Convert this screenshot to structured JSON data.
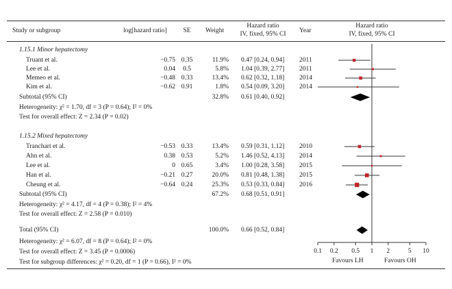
{
  "headers": {
    "study": "Study or subgroup",
    "loghr": "log[hazard ratio]",
    "se": "SE",
    "weight": "Weight",
    "hr_line1": "Hazard ratio",
    "hr_line2": "IV, fixed, 95% CI",
    "year": "Year",
    "plot_line1": "Hazard ratio",
    "plot_line2": "IV, fixed, 95% CI"
  },
  "groups": [
    {
      "title": "1.15.1 Minor hepatectomy",
      "rows": [
        {
          "study": "Truant et al.",
          "loghr": "−0.75",
          "se": "0.35",
          "weight": "11.9%",
          "ci": "0.47 [0.24, 0.94]",
          "year": "2011"
        },
        {
          "study": "Lee et al.",
          "loghr": "0.04",
          "se": "0.5",
          "weight": "5.8%",
          "ci": "1.04 [0.39, 2.77]",
          "year": "2011"
        },
        {
          "study": "Memeo et al.",
          "loghr": "−0.48",
          "se": "0.33",
          "weight": "13.4%",
          "ci": "0.62 [0.32, 1.18]",
          "year": "2014"
        },
        {
          "study": "Kim et al.",
          "loghr": "−0.62",
          "se": "0.91",
          "weight": "1.8%",
          "ci": "0.54 [0.09, 3.20]",
          "year": "2014"
        }
      ],
      "subtotal": {
        "label": "Subtotal (95% CI)",
        "weight": "32.8%",
        "ci": "0.61 [0.40, 0.92]"
      },
      "heterogeneity": "Heterogeneity: χ² = 1.70, df = 3 (P = 0.64); I² = 0%",
      "overall": "Test for overall effect: Z = 2.34 (P = 0.02)"
    },
    {
      "title": "1.15.2 Mixed hepatectomy",
      "rows": [
        {
          "study": "Tranchart et al.",
          "loghr": "−0.53",
          "se": "0.33",
          "weight": "13.4%",
          "ci": "0.59 [0.31, 1.12]",
          "year": "2010"
        },
        {
          "study": "Ahn et al.",
          "loghr": "0.38",
          "se": "0.53",
          "weight": "5.2%",
          "ci": "1.46 [0.52, 4.13]",
          "year": "2014"
        },
        {
          "study": "Lee et al.",
          "loghr": "0",
          "se": "0.65",
          "weight": "3.4%",
          "ci": "1.00 [0.28, 3.58]",
          "year": "2015"
        },
        {
          "study": "Han et al.",
          "loghr": "−0.21",
          "se": "0.27",
          "weight": "20.0%",
          "ci": "0.81 [0.48, 1.38]",
          "year": "2015"
        },
        {
          "study": "Cheung et al.",
          "loghr": "−0.64",
          "se": "0.24",
          "weight": "25.3%",
          "ci": "0.53 [0.33, 0.84]",
          "year": "2016"
        }
      ],
      "subtotal": {
        "label": "Subtotal (95% CI)",
        "weight": "67.2%",
        "ci": "0.68 [0.51, 0.91]"
      },
      "heterogeneity": "Heterogeneity: χ² = 4.17, df = 4 (P = 0.38); I² = 4%",
      "overall": "Test for overall effect: Z = 2.58 (P = 0.010)"
    }
  ],
  "total": {
    "label": "Total (95% CI)",
    "weight": "100.0%",
    "ci": "0.66 [0.52, 0.84]"
  },
  "footer": [
    "Heterogeneity: χ² = 6.07, df = 8 (P = 0.64); I² = 0%",
    "Test for overall effect: Z = 3.45 (P = 0.0006)",
    "Test for subgroup differences: χ² = 0.20, df = 1 (P = 0.66), I² = 0%"
  ],
  "favours": {
    "left": "Favours LH",
    "right": "Favours OH"
  },
  "colors": {
    "square": "#c0262a",
    "diamond": "#000000",
    "line": "#333333"
  },
  "chart_data": {
    "type": "forest",
    "xscale": "log",
    "xlim": [
      0.1,
      10
    ],
    "xticks": [
      "0.1",
      "0.2",
      "0.5",
      "1",
      "2",
      "5",
      "10"
    ],
    "reference_line": 1,
    "studies": [
      {
        "hr": 0.47,
        "lo": 0.24,
        "hi": 0.94,
        "weight": 11.9
      },
      {
        "hr": 1.04,
        "lo": 0.39,
        "hi": 2.77,
        "weight": 5.8
      },
      {
        "hr": 0.62,
        "lo": 0.32,
        "hi": 1.18,
        "weight": 13.4
      },
      {
        "hr": 0.54,
        "lo": 0.09,
        "hi": 3.2,
        "weight": 1.8
      },
      {
        "hr": 0.59,
        "lo": 0.31,
        "hi": 1.12,
        "weight": 13.4
      },
      {
        "hr": 1.46,
        "lo": 0.52,
        "hi": 4.13,
        "weight": 5.2
      },
      {
        "hr": 1.0,
        "lo": 0.28,
        "hi": 3.58,
        "weight": 3.4
      },
      {
        "hr": 0.81,
        "lo": 0.48,
        "hi": 1.38,
        "weight": 20.0
      },
      {
        "hr": 0.53,
        "lo": 0.33,
        "hi": 0.84,
        "weight": 25.3
      }
    ],
    "diamonds": [
      {
        "hr": 0.61,
        "lo": 0.4,
        "hi": 0.92
      },
      {
        "hr": 0.68,
        "lo": 0.51,
        "hi": 0.91
      },
      {
        "hr": 0.66,
        "lo": 0.52,
        "hi": 0.84
      }
    ]
  }
}
